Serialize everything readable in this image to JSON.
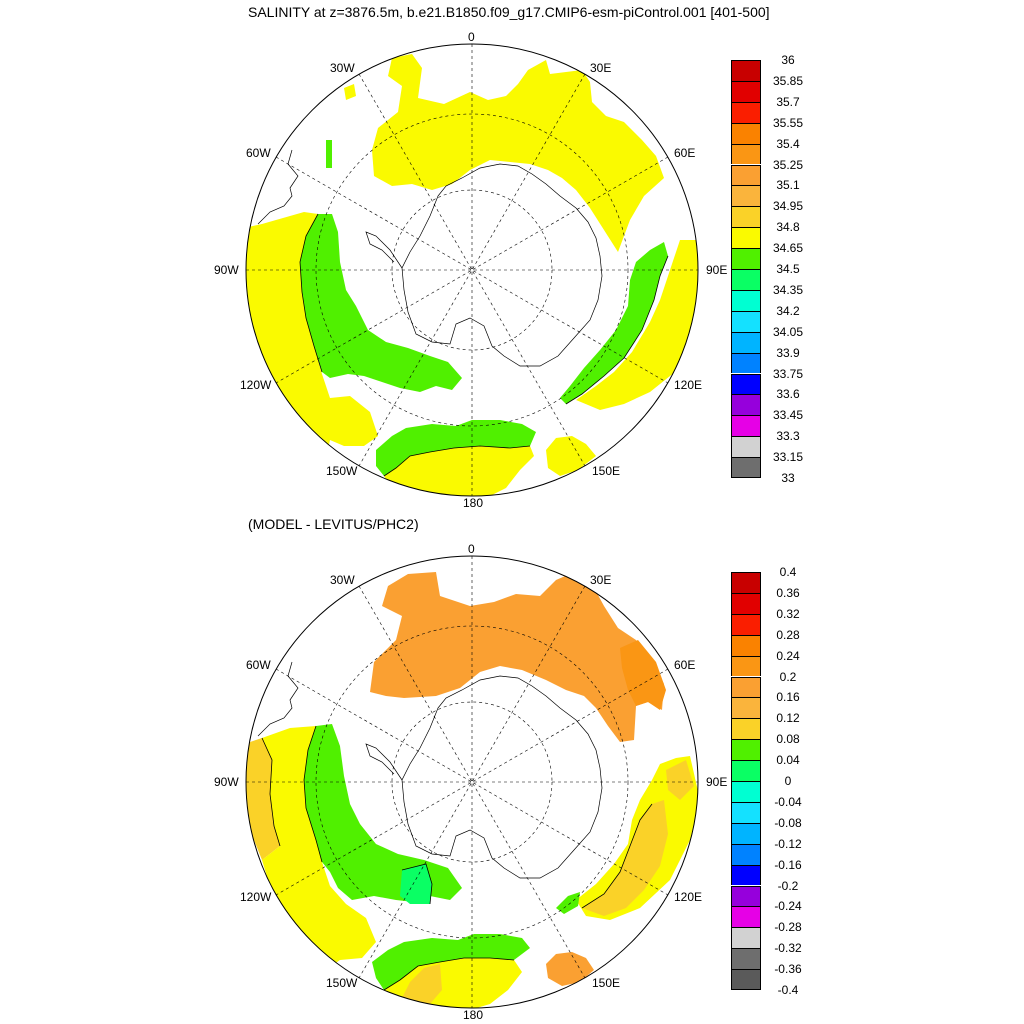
{
  "titles": {
    "main": "SALINITY at z=3876.5m, b.e21.B1850.f09_g17.CMIP6-esm-piControl.001 [401-500]",
    "sub": "(MODEL - LEVITUS/PHC2)"
  },
  "map": {
    "projection": "south polar stereographic",
    "longitude_labels": [
      {
        "name": "0"
      },
      {
        "name": "30E"
      },
      {
        "name": "60E"
      },
      {
        "name": "90E"
      },
      {
        "name": "120E"
      },
      {
        "name": "150E"
      },
      {
        "name": "180"
      },
      {
        "name": "150W"
      },
      {
        "name": "120W"
      },
      {
        "name": "90W"
      },
      {
        "name": "60W"
      },
      {
        "name": "30W"
      }
    ]
  },
  "colorbars": {
    "top": {
      "labels": [
        "36",
        "35.85",
        "35.7",
        "35.55",
        "35.4",
        "35.25",
        "35.1",
        "34.95",
        "34.8",
        "34.65",
        "34.5",
        "34.35",
        "34.2",
        "34.05",
        "33.9",
        "33.75",
        "33.6",
        "33.45",
        "33.3",
        "33.15",
        "33"
      ],
      "colors": [
        "#c80000",
        "#e10000",
        "#fa1e00",
        "#fa8200",
        "#fa9614",
        "#faa032",
        "#fab43c",
        "#fad228",
        "#fafa00",
        "#50f000",
        "#0aff64",
        "#00ffd2",
        "#14e1ff",
        "#00b4ff",
        "#0082ff",
        "#0000ff",
        "#9600dc",
        "#e600e6",
        "#d2d2d2",
        "#6e6e6e"
      ]
    },
    "bottom": {
      "labels": [
        "0.4",
        "0.36",
        "0.32",
        "0.28",
        "0.24",
        "0.2",
        "0.16",
        "0.12",
        "0.08",
        "0.04",
        "0",
        "-0.04",
        "-0.08",
        "-0.12",
        "-0.16",
        "-0.2",
        "-0.24",
        "-0.28",
        "-0.32",
        "-0.36",
        "-0.4"
      ],
      "colors": [
        "#c80000",
        "#e10000",
        "#fa1e00",
        "#fa8200",
        "#fa9614",
        "#faa032",
        "#fab43c",
        "#fad228",
        "#50f000",
        "#0aff64",
        "#00ffd2",
        "#14e1ff",
        "#00b4ff",
        "#0082ff",
        "#0000ff",
        "#9600dc",
        "#e600e6",
        "#d2d2d2",
        "#6e6e6e",
        "#5a5a5a"
      ]
    }
  },
  "fill_colors": {
    "yellow": "#fafa00",
    "green": "#50f000",
    "orange": "#faa032",
    "dark_orange": "#fa9614",
    "light_orange": "#fad228",
    "mint": "#0aff64"
  }
}
